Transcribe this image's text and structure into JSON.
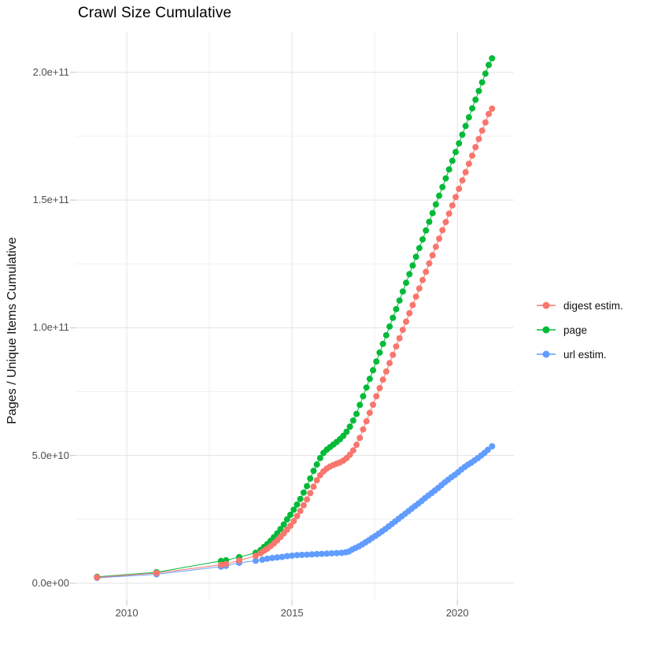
{
  "title": "Crawl Size Cumulative",
  "chart_data": {
    "type": "scatter",
    "title": "Crawl Size Cumulative",
    "xlabel": "",
    "ylabel": "Pages / Unique Items Cumulative",
    "marker": "point+line",
    "grid": true,
    "legend_position": "right",
    "value_note": "y values stored in billions (1e9 items); y axis shown in scientific notation",
    "xlim": [
      2008.45,
      2021.71
    ],
    "ylim_e9": [
      -6.5,
      216
    ],
    "x_ticks": [
      {
        "label": "2010",
        "x": 2010
      },
      {
        "label": "2015",
        "x": 2015
      },
      {
        "label": "2020",
        "x": 2020
      }
    ],
    "x_minor": [
      2012.5,
      2017.5
    ],
    "y_ticks": [
      {
        "label": "0.0e+00",
        "value_e9": 0
      },
      {
        "label": "5.0e+10",
        "value_e9": 50
      },
      {
        "label": "1.0e+11",
        "value_e9": 100
      },
      {
        "label": "1.5e+11",
        "value_e9": 150
      },
      {
        "label": "2.0e+11",
        "value_e9": 200
      }
    ],
    "y_minor_e9": [
      25,
      75,
      125,
      175
    ],
    "series": [
      {
        "name": "digest estim.",
        "color": "#F8766D",
        "points": [
          [
            2009.1,
            2.3
          ],
          [
            2010.9,
            4.0
          ],
          [
            2012.85,
            7.2
          ],
          [
            2013.0,
            7.5
          ],
          [
            2013.4,
            8.9
          ],
          [
            2013.9,
            10.7
          ],
          [
            2014.05,
            11.8
          ],
          [
            2014.15,
            12.7
          ],
          [
            2014.25,
            13.5
          ],
          [
            2014.35,
            14.5
          ],
          [
            2014.45,
            15.6
          ],
          [
            2014.55,
            16.8
          ],
          [
            2014.65,
            18.1
          ],
          [
            2014.75,
            19.5
          ],
          [
            2014.85,
            21.0
          ],
          [
            2014.95,
            22.5
          ],
          [
            2015.05,
            24.3
          ],
          [
            2015.15,
            26.3
          ],
          [
            2015.25,
            28.3
          ],
          [
            2015.35,
            30.5
          ],
          [
            2015.45,
            32.8
          ],
          [
            2015.55,
            35.3
          ],
          [
            2015.65,
            37.8
          ],
          [
            2015.75,
            40.3
          ],
          [
            2015.85,
            42.3
          ],
          [
            2015.95,
            43.8
          ],
          [
            2016.05,
            44.9
          ],
          [
            2016.15,
            45.7
          ],
          [
            2016.25,
            46.3
          ],
          [
            2016.35,
            46.8
          ],
          [
            2016.45,
            47.3
          ],
          [
            2016.55,
            48.0
          ],
          [
            2016.65,
            49.0
          ],
          [
            2016.75,
            50.3
          ],
          [
            2016.85,
            52.0
          ],
          [
            2016.95,
            54.2
          ],
          [
            2017.05,
            56.9
          ],
          [
            2017.15,
            60.2
          ],
          [
            2017.25,
            63.4
          ],
          [
            2017.35,
            66.7
          ],
          [
            2017.45,
            69.9
          ],
          [
            2017.55,
            73.2
          ],
          [
            2017.65,
            76.4
          ],
          [
            2017.75,
            79.7
          ],
          [
            2017.85,
            82.9
          ],
          [
            2017.95,
            86.2
          ],
          [
            2018.05,
            89.4
          ],
          [
            2018.15,
            92.7
          ],
          [
            2018.25,
            95.9
          ],
          [
            2018.35,
            99.2
          ],
          [
            2018.45,
            102.4
          ],
          [
            2018.55,
            105.7
          ],
          [
            2018.65,
            108.9
          ],
          [
            2018.75,
            112.2
          ],
          [
            2018.85,
            115.4
          ],
          [
            2018.95,
            118.7
          ],
          [
            2019.05,
            121.9
          ],
          [
            2019.15,
            125.2
          ],
          [
            2019.25,
            128.4
          ],
          [
            2019.35,
            131.7
          ],
          [
            2019.45,
            134.9
          ],
          [
            2019.55,
            138.2
          ],
          [
            2019.65,
            141.4
          ],
          [
            2019.75,
            144.7
          ],
          [
            2019.85,
            147.9
          ],
          [
            2019.95,
            151.2
          ],
          [
            2020.05,
            154.4
          ],
          [
            2020.15,
            157.7
          ],
          [
            2020.25,
            160.9
          ],
          [
            2020.35,
            164.2
          ],
          [
            2020.45,
            167.4
          ],
          [
            2020.55,
            170.7
          ],
          [
            2020.65,
            173.9
          ],
          [
            2020.75,
            177.2
          ],
          [
            2020.85,
            180.4
          ],
          [
            2020.95,
            183.7
          ],
          [
            2021.05,
            185.8
          ]
        ]
      },
      {
        "name": "page",
        "color": "#00BA38",
        "points": [
          [
            2009.1,
            2.5
          ],
          [
            2010.9,
            4.3
          ],
          [
            2012.85,
            8.7
          ],
          [
            2013.0,
            9.0
          ],
          [
            2013.4,
            10.2
          ],
          [
            2013.9,
            11.9
          ],
          [
            2014.05,
            13.0
          ],
          [
            2014.15,
            14.2
          ],
          [
            2014.25,
            15.3
          ],
          [
            2014.35,
            16.6
          ],
          [
            2014.45,
            18.0
          ],
          [
            2014.55,
            19.5
          ],
          [
            2014.65,
            21.2
          ],
          [
            2014.75,
            23.0
          ],
          [
            2014.85,
            25.0
          ],
          [
            2014.95,
            26.8
          ],
          [
            2015.05,
            28.8
          ],
          [
            2015.15,
            30.8
          ],
          [
            2015.25,
            33.0
          ],
          [
            2015.35,
            35.5
          ],
          [
            2015.45,
            38.0
          ],
          [
            2015.55,
            41.0
          ],
          [
            2015.65,
            44.0
          ],
          [
            2015.75,
            46.5
          ],
          [
            2015.85,
            49.0
          ],
          [
            2015.95,
            51.0
          ],
          [
            2016.05,
            52.3
          ],
          [
            2016.15,
            53.3
          ],
          [
            2016.25,
            54.3
          ],
          [
            2016.35,
            55.3
          ],
          [
            2016.45,
            56.4
          ],
          [
            2016.55,
            57.7
          ],
          [
            2016.65,
            59.3
          ],
          [
            2016.75,
            61.3
          ],
          [
            2016.85,
            63.7
          ],
          [
            2016.95,
            66.3
          ],
          [
            2017.05,
            69.8
          ],
          [
            2017.15,
            73.2
          ],
          [
            2017.25,
            76.6
          ],
          [
            2017.35,
            80.0
          ],
          [
            2017.45,
            83.4
          ],
          [
            2017.55,
            86.8
          ],
          [
            2017.65,
            90.3
          ],
          [
            2017.75,
            93.7
          ],
          [
            2017.85,
            97.1
          ],
          [
            2017.95,
            100.5
          ],
          [
            2018.05,
            103.9
          ],
          [
            2018.15,
            107.3
          ],
          [
            2018.25,
            110.7
          ],
          [
            2018.35,
            114.2
          ],
          [
            2018.45,
            117.6
          ],
          [
            2018.55,
            121.0
          ],
          [
            2018.65,
            124.4
          ],
          [
            2018.75,
            127.8
          ],
          [
            2018.85,
            131.2
          ],
          [
            2018.95,
            134.6
          ],
          [
            2019.05,
            138.1
          ],
          [
            2019.15,
            141.5
          ],
          [
            2019.25,
            144.9
          ],
          [
            2019.35,
            148.3
          ],
          [
            2019.45,
            151.7
          ],
          [
            2019.55,
            155.1
          ],
          [
            2019.65,
            158.5
          ],
          [
            2019.75,
            162.0
          ],
          [
            2019.85,
            165.4
          ],
          [
            2019.95,
            168.8
          ],
          [
            2020.05,
            172.2
          ],
          [
            2020.15,
            175.6
          ],
          [
            2020.25,
            179.0
          ],
          [
            2020.35,
            182.4
          ],
          [
            2020.45,
            185.9
          ],
          [
            2020.55,
            189.3
          ],
          [
            2020.65,
            192.7
          ],
          [
            2020.75,
            196.1
          ],
          [
            2020.85,
            199.5
          ],
          [
            2020.95,
            202.9
          ],
          [
            2021.05,
            205.5
          ]
        ]
      },
      {
        "name": "url estim.",
        "color": "#619CFF",
        "points": [
          [
            2009.1,
            2.1
          ],
          [
            2010.9,
            3.5
          ],
          [
            2012.85,
            6.5
          ],
          [
            2013.0,
            6.8
          ],
          [
            2013.4,
            8.0
          ],
          [
            2013.9,
            8.8
          ],
          [
            2014.1,
            9.2
          ],
          [
            2014.25,
            9.6
          ],
          [
            2014.4,
            9.9
          ],
          [
            2014.55,
            10.1
          ],
          [
            2014.7,
            10.3
          ],
          [
            2014.85,
            10.6
          ],
          [
            2015.0,
            10.8
          ],
          [
            2015.15,
            11.0
          ],
          [
            2015.3,
            11.1
          ],
          [
            2015.45,
            11.2
          ],
          [
            2015.6,
            11.3
          ],
          [
            2015.75,
            11.4
          ],
          [
            2015.9,
            11.5
          ],
          [
            2016.05,
            11.6
          ],
          [
            2016.2,
            11.7
          ],
          [
            2016.35,
            11.8
          ],
          [
            2016.5,
            11.9
          ],
          [
            2016.62,
            12.1
          ],
          [
            2016.72,
            12.4
          ],
          [
            2016.82,
            13.2
          ],
          [
            2016.92,
            13.8
          ],
          [
            2017.02,
            14.4
          ],
          [
            2017.12,
            15.2
          ],
          [
            2017.22,
            16.0
          ],
          [
            2017.32,
            16.8
          ],
          [
            2017.42,
            17.7
          ],
          [
            2017.52,
            18.5
          ],
          [
            2017.62,
            19.4
          ],
          [
            2017.72,
            20.3
          ],
          [
            2017.82,
            21.2
          ],
          [
            2017.92,
            22.2
          ],
          [
            2018.02,
            23.2
          ],
          [
            2018.12,
            24.2
          ],
          [
            2018.22,
            25.2
          ],
          [
            2018.32,
            26.2
          ],
          [
            2018.42,
            27.2
          ],
          [
            2018.52,
            28.2
          ],
          [
            2018.62,
            29.2
          ],
          [
            2018.72,
            30.2
          ],
          [
            2018.82,
            31.2
          ],
          [
            2018.92,
            32.2
          ],
          [
            2019.02,
            33.3
          ],
          [
            2019.12,
            34.3
          ],
          [
            2019.22,
            35.3
          ],
          [
            2019.32,
            36.3
          ],
          [
            2019.42,
            37.3
          ],
          [
            2019.52,
            38.4
          ],
          [
            2019.62,
            39.5
          ],
          [
            2019.72,
            40.5
          ],
          [
            2019.82,
            41.5
          ],
          [
            2019.92,
            42.4
          ],
          [
            2020.02,
            43.4
          ],
          [
            2020.12,
            44.5
          ],
          [
            2020.22,
            45.5
          ],
          [
            2020.32,
            46.4
          ],
          [
            2020.42,
            47.2
          ],
          [
            2020.52,
            48.1
          ],
          [
            2020.62,
            49.0
          ],
          [
            2020.72,
            50.0
          ],
          [
            2020.82,
            51.0
          ],
          [
            2020.92,
            52.2
          ],
          [
            2021.05,
            53.6
          ]
        ]
      }
    ],
    "style": {
      "background": "#ffffff",
      "grid_major": "#e3e3e3",
      "grid_minor": "#f0f0f0",
      "tick_mark_color": "#c4c4c4",
      "axis_text_color": "#4d4d4d",
      "title_color": "#000000",
      "point_radius": 4
    }
  }
}
